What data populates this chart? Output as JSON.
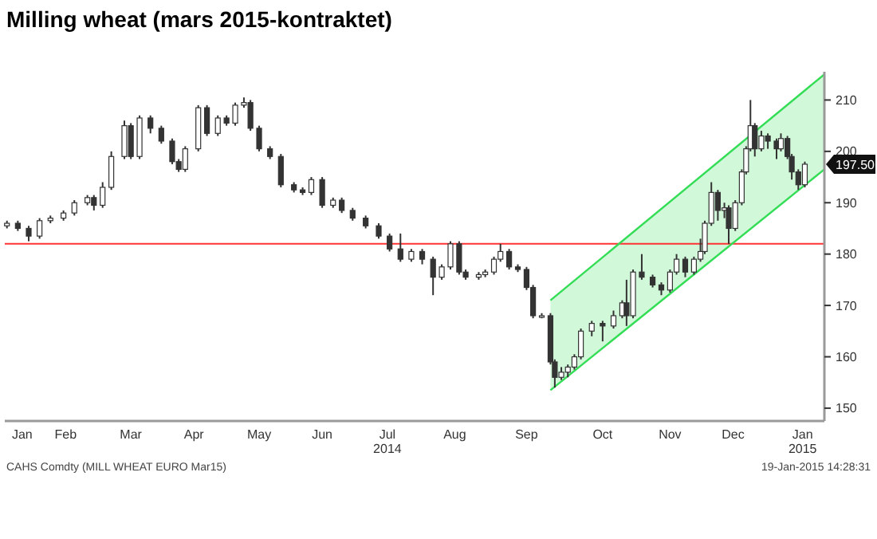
{
  "chart_data": {
    "type": "candlestick",
    "title": "Milling wheat (mars 2015-kontraktet)",
    "x": [
      "2014-01-17",
      "2014-01-22",
      "2014-01-27",
      "2014-02-01",
      "2014-02-06",
      "2014-02-12",
      "2014-02-17",
      "2014-02-23",
      "2014-02-26",
      "2014-03-02",
      "2014-03-06",
      "2014-03-12",
      "2014-03-15",
      "2014-03-19",
      "2014-03-24",
      "2014-03-29",
      "2014-04-03",
      "2014-04-06",
      "2014-04-09",
      "2014-04-15",
      "2014-04-19",
      "2014-04-24",
      "2014-04-28",
      "2014-05-02",
      "2014-05-06",
      "2014-05-09",
      "2014-05-13",
      "2014-05-18",
      "2014-05-23",
      "2014-05-29",
      "2014-06-02",
      "2014-06-06",
      "2014-06-11",
      "2014-06-16",
      "2014-06-20",
      "2014-06-25",
      "2014-07-01",
      "2014-07-07",
      "2014-07-12",
      "2014-07-17",
      "2014-07-22",
      "2014-07-27",
      "2014-08-01",
      "2014-08-05",
      "2014-08-09",
      "2014-08-13",
      "2014-08-16",
      "2014-08-22",
      "2014-08-25",
      "2014-08-29",
      "2014-09-01",
      "2014-09-05",
      "2014-09-09",
      "2014-09-13",
      "2014-09-16",
      "2014-09-20",
      "2014-09-24",
      "2014-09-26",
      "2014-09-29",
      "2014-10-02",
      "2014-10-05",
      "2014-10-08",
      "2014-10-13",
      "2014-10-18",
      "2014-10-23",
      "2014-10-27",
      "2014-10-29",
      "2014-11-01",
      "2014-11-05",
      "2014-11-10",
      "2014-11-14",
      "2014-11-18",
      "2014-11-21",
      "2014-11-25",
      "2014-11-29",
      "2014-12-02",
      "2014-12-04",
      "2014-12-07",
      "2014-12-10",
      "2014-12-13",
      "2014-12-15",
      "2014-12-18",
      "2014-12-21",
      "2014-12-23",
      "2014-12-25",
      "2014-12-27",
      "2014-12-30",
      "2015-01-02",
      "2015-01-06",
      "2015-01-08",
      "2015-01-11",
      "2015-01-13",
      "2015-01-16",
      "2015-01-19"
    ],
    "ohlc": [
      [
        185.5,
        186.5,
        185,
        186
      ],
      [
        186,
        186.5,
        184.5,
        185
      ],
      [
        185,
        185.5,
        182.5,
        183.5
      ],
      [
        183.5,
        187,
        183,
        186.5
      ],
      [
        186.5,
        187.5,
        186,
        187
      ],
      [
        187,
        188.5,
        186.5,
        188
      ],
      [
        188,
        190.5,
        187.5,
        190
      ],
      [
        190,
        191.5,
        189.5,
        191
      ],
      [
        191,
        191.5,
        188.5,
        189.5
      ],
      [
        189.5,
        194,
        189,
        193
      ],
      [
        193,
        200,
        192.5,
        199
      ],
      [
        199,
        206,
        198.5,
        205
      ],
      [
        205,
        205.5,
        198.5,
        199
      ],
      [
        199,
        207,
        198.5,
        206.5
      ],
      [
        206.5,
        207,
        203.5,
        204.5
      ],
      [
        204.5,
        205,
        201.5,
        202
      ],
      [
        202,
        202.5,
        197.5,
        198
      ],
      [
        198,
        198.5,
        196,
        196.5
      ],
      [
        196.5,
        201,
        196,
        200.5
      ],
      [
        200.5,
        209,
        200,
        208.5
      ],
      [
        208.5,
        209,
        203,
        203.5
      ],
      [
        203.5,
        207,
        203,
        206.5
      ],
      [
        206.5,
        207,
        205,
        205.5
      ],
      [
        205.5,
        209.5,
        205,
        209
      ],
      [
        209,
        210.5,
        208.5,
        209.5
      ],
      [
        209.5,
        210,
        204,
        204.5
      ],
      [
        204.5,
        205,
        200,
        200.5
      ],
      [
        200.5,
        201,
        198.5,
        199
      ],
      [
        199,
        199.5,
        193,
        193.5
      ],
      [
        193.5,
        194,
        192,
        192.5
      ],
      [
        192.5,
        193,
        191.5,
        192
      ],
      [
        192,
        195,
        191.5,
        194.5
      ],
      [
        194.5,
        195,
        189,
        189.5
      ],
      [
        189.5,
        191,
        189,
        190.5
      ],
      [
        190.5,
        191,
        188,
        188.5
      ],
      [
        188.5,
        189,
        186.5,
        187
      ],
      [
        187,
        187.5,
        185,
        185.5
      ],
      [
        185.5,
        186,
        183,
        183.5
      ],
      [
        183.5,
        184,
        180.5,
        181
      ],
      [
        181,
        184,
        178.5,
        179
      ],
      [
        179,
        181,
        178.5,
        180.5
      ],
      [
        180.5,
        181,
        178,
        179
      ],
      [
        179,
        179.5,
        172,
        175.5
      ],
      [
        175.5,
        178,
        175,
        177.5
      ],
      [
        177.5,
        182.5,
        177,
        182
      ],
      [
        182,
        182.5,
        176,
        176.5
      ],
      [
        176.5,
        177,
        175,
        175.5
      ],
      [
        175.5,
        176.5,
        175,
        176
      ],
      [
        176,
        177,
        175.5,
        176.5
      ],
      [
        176.5,
        179.5,
        176,
        179
      ],
      [
        179,
        182,
        178.5,
        180.5
      ],
      [
        180.5,
        181,
        177,
        177.5
      ],
      [
        177.5,
        178,
        176.5,
        177
      ],
      [
        177,
        177.5,
        173,
        173.5
      ],
      [
        173.5,
        174,
        167.5,
        168
      ],
      [
        168,
        168.5,
        167.5,
        168
      ],
      [
        168,
        168.5,
        158.5,
        159
      ],
      [
        159,
        159.5,
        154,
        156
      ],
      [
        156,
        158,
        155.5,
        157
      ],
      [
        157,
        158.5,
        156,
        158
      ],
      [
        158,
        160.5,
        157.5,
        160
      ],
      [
        160,
        165.5,
        159.5,
        165
      ],
      [
        165,
        167,
        164,
        166.5
      ],
      [
        166.5,
        167,
        163,
        166
      ],
      [
        166,
        169,
        165.5,
        168
      ],
      [
        168,
        171,
        167.5,
        170.5
      ],
      [
        170.5,
        175,
        166,
        168
      ],
      [
        168,
        177,
        167.5,
        176.5
      ],
      [
        176.5,
        180,
        175,
        175.5
      ],
      [
        175.5,
        176,
        173.5,
        174
      ],
      [
        174,
        174.5,
        172,
        173
      ],
      [
        173,
        177,
        172.5,
        176.5
      ],
      [
        176.5,
        180,
        176,
        179
      ],
      [
        179,
        179.5,
        175.5,
        176.5
      ],
      [
        176.5,
        179.5,
        176,
        179
      ],
      [
        179,
        183,
        178.5,
        180.5
      ],
      [
        180.5,
        186.5,
        180,
        186
      ],
      [
        186,
        194,
        185.5,
        192
      ],
      [
        192,
        192.5,
        186.5,
        188.5
      ],
      [
        188.5,
        190,
        187,
        189
      ],
      [
        189,
        189.5,
        182,
        185
      ],
      [
        185,
        190.5,
        184.5,
        190
      ],
      [
        190,
        196.5,
        189.5,
        196
      ],
      [
        196,
        201,
        195.5,
        200.5
      ],
      [
        200.5,
        210,
        200,
        205
      ],
      [
        205,
        205.5,
        199,
        200.5
      ],
      [
        200.5,
        204,
        200,
        203
      ],
      [
        203,
        203.5,
        200.5,
        202
      ],
      [
        202,
        202.5,
        198.5,
        200.5
      ],
      [
        200.5,
        203.5,
        200,
        202.5
      ],
      [
        202.5,
        203,
        198.5,
        199
      ],
      [
        199,
        199.5,
        194.5,
        196
      ],
      [
        196,
        196.5,
        192.5,
        193.5
      ],
      [
        193.5,
        198,
        193,
        197.5
      ]
    ],
    "color": "#333333",
    "series": [
      {
        "type": "line",
        "color": "#33dd55",
        "x": [
          "2014-09-24",
          "2015-01-28"
        ],
        "values": [
          153.5,
          196.5
        ]
      },
      {
        "type": "line",
        "color": "#33dd55",
        "x": [
          "2014-09-24",
          "2015-01-28"
        ],
        "values": [
          171,
          215
        ]
      }
    ],
    "xlim": [
      "2014-01-16",
      "2015-01-28"
    ],
    "xticks": [
      {
        "value": "2014-01-24",
        "label": "Jan"
      },
      {
        "value": "2014-02-13",
        "label": "Feb"
      },
      {
        "value": "2014-03-15",
        "label": "Mar"
      },
      {
        "value": "2014-04-13",
        "label": "Apr"
      },
      {
        "value": "2014-05-13",
        "label": "May"
      },
      {
        "value": "2014-06-11",
        "label": "Jun"
      },
      {
        "value": "2014-07-11",
        "label": "Jul\n2014"
      },
      {
        "value": "2014-08-11",
        "label": "Aug"
      },
      {
        "value": "2014-09-13",
        "label": "Sep"
      },
      {
        "value": "2014-10-18",
        "label": "Oct"
      },
      {
        "value": "2014-11-18",
        "label": "Nov"
      },
      {
        "value": "2014-12-17",
        "label": "Dec"
      },
      {
        "value": "2015-01-18",
        "label": "Jan\n2015"
      }
    ],
    "ylim": [
      147.5,
      215.5
    ],
    "yticks": [
      150,
      160,
      170,
      180,
      190,
      200,
      210
    ],
    "ref_lines": [
      {
        "axis": "y",
        "value": 182,
        "color": "#ff3333"
      }
    ],
    "annotations": [
      {
        "text": "197.50",
        "x": "2015-01-19",
        "y": 197.5
      },
      "CAHS Comdty (MILL WHEAT EURO Mar15)",
      "19-Jan-2015 14:28:31"
    ]
  }
}
